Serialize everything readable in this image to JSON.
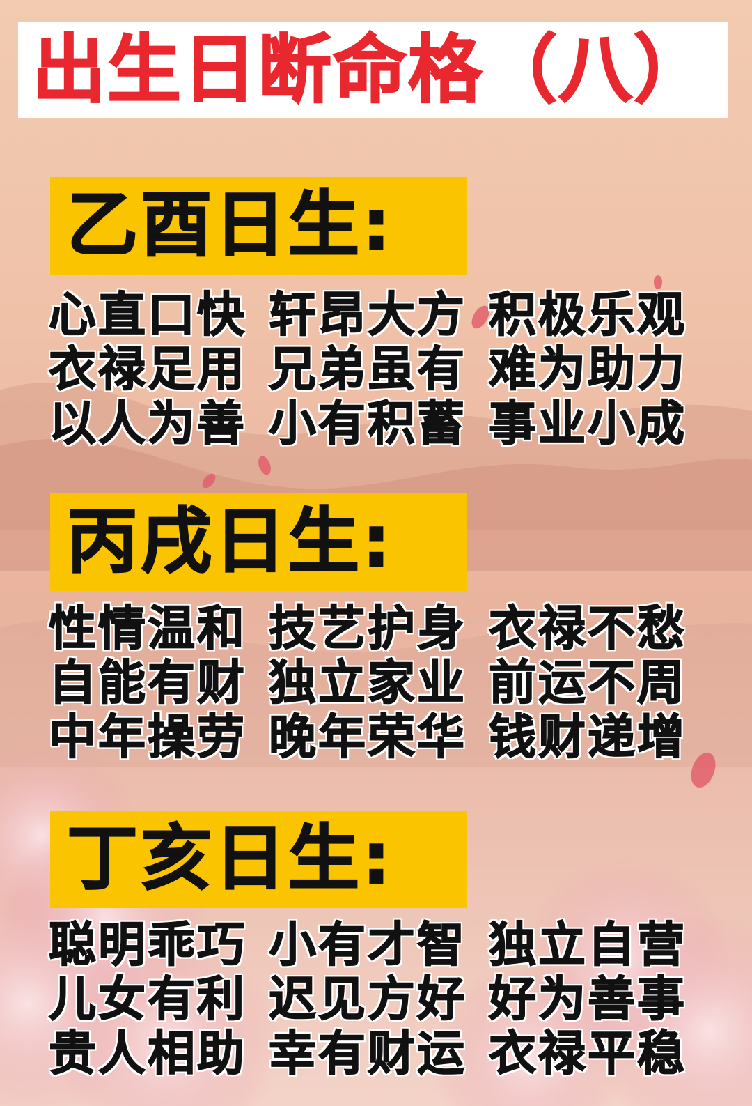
{
  "header": {
    "title": "出生日断命格（八）"
  },
  "sections": [
    {
      "heading": "乙酉日生:",
      "traits": [
        "心直口快",
        "轩昂大方",
        "积极乐观",
        "衣禄足用",
        "兄弟虽有",
        "难为助力",
        "以人为善",
        "小有积蓄",
        "事业小成"
      ]
    },
    {
      "heading": "丙戌日生:",
      "traits": [
        "性情温和",
        "技艺护身",
        "衣禄不愁",
        "自能有财",
        "独立家业",
        "前运不周",
        "中年操劳",
        "晚年荣华",
        "钱财递增"
      ]
    },
    {
      "heading": "丁亥日生:",
      "traits": [
        "聪明乖巧",
        "小有才智",
        "独立自营",
        "儿女有利",
        "迟见方好",
        "好为善事",
        "贵人相助",
        "幸有财运",
        "衣禄平稳"
      ]
    }
  ],
  "colors": {
    "title_red": "#e8272e",
    "heading_bg": "#fbc400",
    "text": "#111111"
  }
}
